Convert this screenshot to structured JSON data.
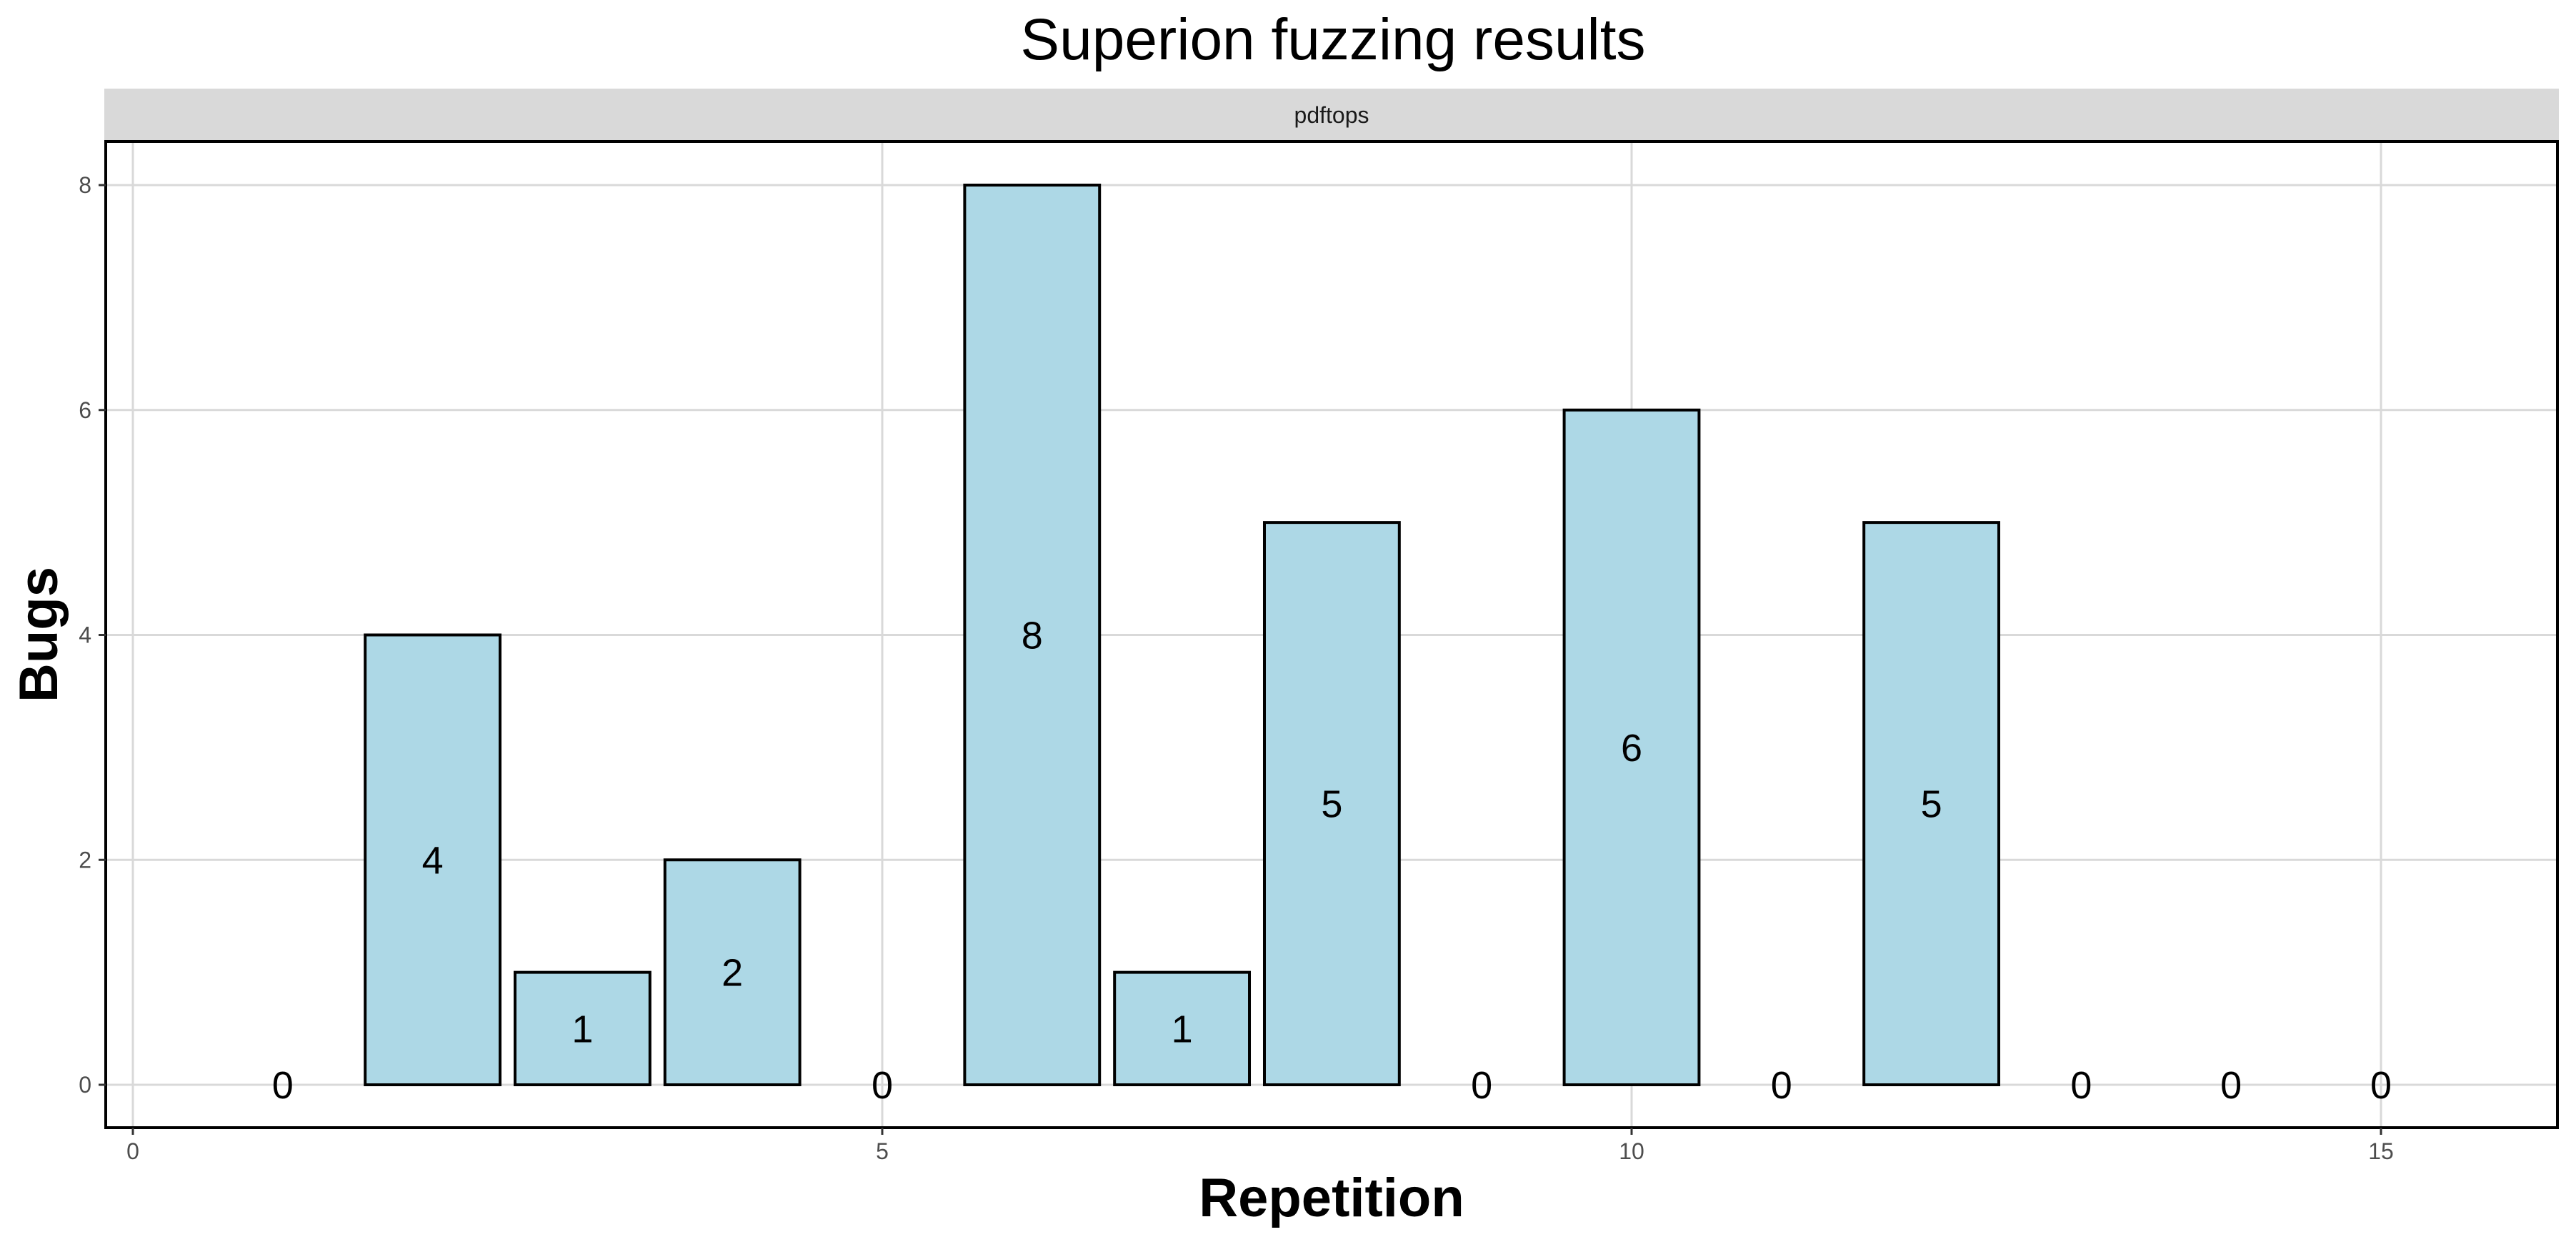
{
  "chart_data": {
    "type": "bar",
    "title": "Superion fuzzing results",
    "facet": "pdftops",
    "xlabel": "Repetition",
    "ylabel": "Bugs",
    "x": [
      1,
      2,
      3,
      4,
      5,
      6,
      7,
      8,
      9,
      10,
      11,
      12,
      13,
      14,
      15
    ],
    "values": [
      0,
      4,
      1,
      2,
      0,
      8,
      1,
      5,
      0,
      6,
      0,
      5,
      0,
      0,
      0
    ],
    "data_labels": [
      "0",
      "4",
      "1",
      "2",
      "0",
      "8",
      "1",
      "5",
      "0",
      "6",
      "0",
      "5",
      "0",
      "0",
      "0"
    ],
    "xlim": [
      0,
      16.2
    ],
    "ylim": [
      0,
      8
    ],
    "x_ticks": [
      0,
      5,
      10,
      15
    ],
    "y_ticks": [
      0,
      2,
      4,
      6,
      8
    ],
    "grid": true,
    "legend": "none",
    "colors": {
      "bar_fill": "#add8e6",
      "bar_stroke": "#000000",
      "grid": "#d9d9d9",
      "strip_fill": "#d9d9d9",
      "panel_border": "#000000"
    }
  }
}
